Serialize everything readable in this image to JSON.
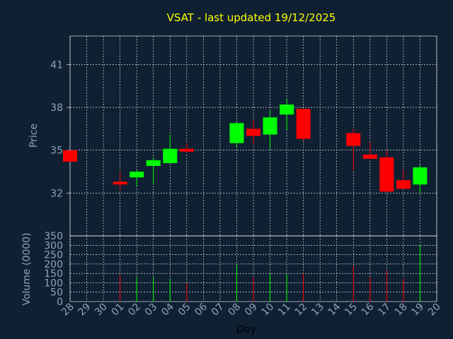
{
  "chart_data": {
    "type": "candlestick",
    "title": "VSAT - last updated 19/12/2025",
    "xlabel": "Day",
    "price_axis": {
      "label": "Price",
      "ticks": [
        32,
        35,
        38,
        41
      ],
      "range": [
        29,
        43
      ]
    },
    "volume_axis": {
      "label": "Volume (0000)",
      "ticks": [
        0,
        50,
        100,
        150,
        200,
        250,
        300,
        350
      ],
      "range": [
        0,
        350
      ]
    },
    "x_tick_labels": [
      "28",
      "29",
      "30",
      "01",
      "02",
      "03",
      "04",
      "05",
      "06",
      "07",
      "08",
      "09",
      "10",
      "11",
      "12",
      "13",
      "14",
      "15",
      "16",
      "17",
      "18",
      "19",
      "20"
    ],
    "grid": true,
    "colors": {
      "up": "#00ff00",
      "down": "#ff0000",
      "background": "#0f2033",
      "grid": "#ffffff",
      "title": "#ffff00",
      "axis_text": "#8ba4c0"
    },
    "candles": [
      {
        "day": "28",
        "open": 35.0,
        "high": 35.0,
        "low": 34.2,
        "close": 34.2,
        "volume": 0
      },
      {
        "day": "01",
        "open": 32.8,
        "high": 33.5,
        "low": 32.2,
        "close": 32.6,
        "volume": 140
      },
      {
        "day": "02",
        "open": 33.1,
        "high": 33.6,
        "low": 32.5,
        "close": 33.5,
        "volume": 130
      },
      {
        "day": "03",
        "open": 33.9,
        "high": 34.5,
        "low": 32.6,
        "close": 34.3,
        "volume": 130
      },
      {
        "day": "04",
        "open": 34.1,
        "high": 36.1,
        "low": 34.1,
        "close": 35.1,
        "volume": 120
      },
      {
        "day": "05",
        "open": 35.1,
        "high": 35.5,
        "low": 34.8,
        "close": 34.9,
        "volume": 100
      },
      {
        "day": "08",
        "open": 35.5,
        "high": 37.0,
        "low": 35.2,
        "close": 36.9,
        "volume": 195
      },
      {
        "day": "09",
        "open": 36.5,
        "high": 37.1,
        "low": 35.4,
        "close": 36.0,
        "volume": 130
      },
      {
        "day": "10",
        "open": 36.1,
        "high": 37.8,
        "low": 35.1,
        "close": 37.3,
        "volume": 150
      },
      {
        "day": "11",
        "open": 37.5,
        "high": 38.6,
        "low": 36.4,
        "close": 38.2,
        "volume": 145
      },
      {
        "day": "12",
        "open": 37.9,
        "high": 37.9,
        "low": 35.7,
        "close": 35.8,
        "volume": 150
      },
      {
        "day": "15",
        "open": 36.2,
        "high": 36.5,
        "low": 33.6,
        "close": 35.3,
        "volume": 190
      },
      {
        "day": "16",
        "open": 34.7,
        "high": 35.6,
        "low": 34.4,
        "close": 34.4,
        "volume": 130
      },
      {
        "day": "17",
        "open": 34.5,
        "high": 35.0,
        "low": 32.1,
        "close": 32.1,
        "volume": 165
      },
      {
        "day": "18",
        "open": 32.9,
        "high": 33.6,
        "low": 32.3,
        "close": 32.3,
        "volume": 125
      },
      {
        "day": "19",
        "open": 32.6,
        "high": 34.0,
        "low": 32.0,
        "close": 33.8,
        "volume": 305
      }
    ]
  }
}
